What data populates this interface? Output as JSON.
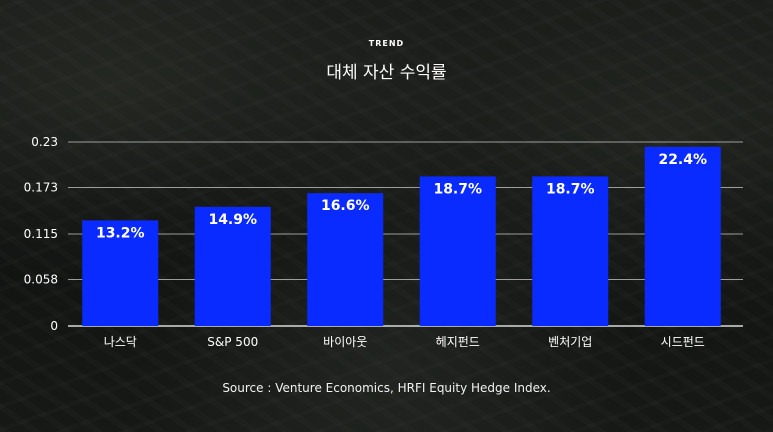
{
  "header": {
    "kicker": "TREND",
    "title": "대체 자산 수익률"
  },
  "footer": {
    "source": "Source : Venture Economics, HRFI Equity Hedge Index."
  },
  "colors": {
    "bar": "#0a2bff",
    "grid": "#c8c8c8"
  },
  "chart_data": {
    "type": "bar",
    "title": "대체 자산 수익률",
    "categories": [
      "나스닥",
      "S&P 500",
      "바이아웃",
      "헤지펀드",
      "벤처기업",
      "시드펀드"
    ],
    "values": [
      0.132,
      0.149,
      0.166,
      0.187,
      0.187,
      0.224
    ],
    "data_labels": [
      "13.2%",
      "14.9%",
      "16.6%",
      "18.7%",
      "18.7%",
      "22.4%"
    ],
    "y_ticks": [
      0,
      0.058,
      0.115,
      0.173,
      0.23
    ],
    "y_tick_labels": [
      "0",
      "0.058",
      "0.115",
      "0.173",
      "0.23"
    ],
    "ylim": [
      0,
      0.23
    ],
    "grid": true,
    "xlabel": "",
    "ylabel": ""
  }
}
